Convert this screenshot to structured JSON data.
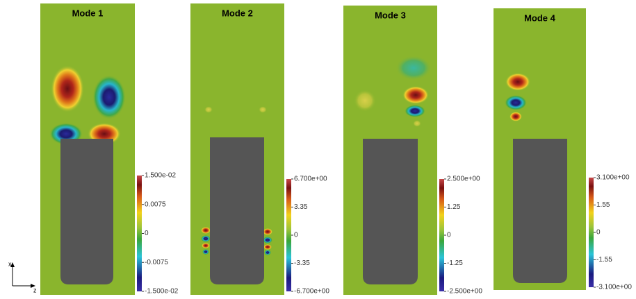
{
  "panels": [
    {
      "title": "Mode 1",
      "colorbar": [
        "1.500e-02",
        "0.0075",
        "0",
        "-0.0075",
        "-1.500e-02"
      ]
    },
    {
      "title": "Mode 2",
      "colorbar": [
        "6.700e+00",
        "3.35",
        "0",
        "-3.35",
        "-6.700e+00"
      ]
    },
    {
      "title": "Mode 3",
      "colorbar": [
        "2.500e+00",
        "1.25",
        "0",
        "-1.25",
        "-2.500e+00"
      ]
    },
    {
      "title": "Mode 4",
      "colorbar": [
        "3.100e+00",
        "1.55",
        "0",
        "-1.55",
        "-3.100e+00"
      ]
    }
  ],
  "axes": {
    "vertical": "x",
    "horizontal": "z"
  }
}
